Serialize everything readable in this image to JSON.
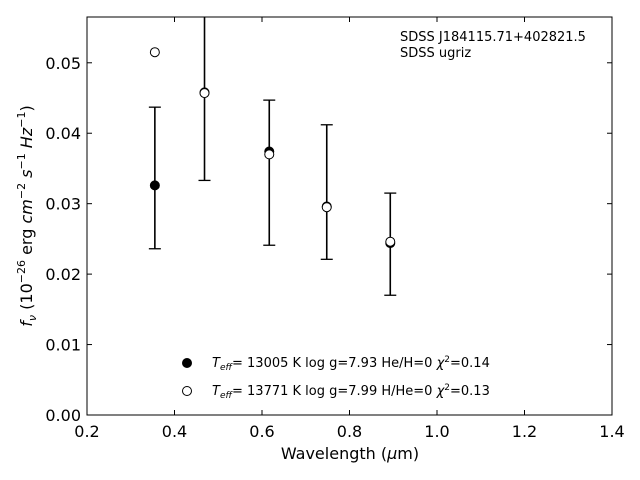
{
  "chart_data": {
    "type": "scatter",
    "xlabel": "Wavelength (μm)",
    "ylabel": "f_ν (10⁻²⁶ erg cm⁻² s⁻¹ Hz⁻¹)",
    "xlim": [
      0.2,
      1.4
    ],
    "ylim": [
      0.0,
      0.0565
    ],
    "xticks": [
      0.2,
      0.4,
      0.6,
      0.8,
      1.0,
      1.2,
      1.4
    ],
    "xtick_labels": [
      "0.2",
      "0.4",
      "0.6",
      "0.8",
      "1.0",
      "1.2",
      "1.4"
    ],
    "yticks": [
      0.0,
      0.01,
      0.02,
      0.03,
      0.04,
      0.05
    ],
    "ytick_labels": [
      "0.00",
      "0.01",
      "0.02",
      "0.03",
      "0.04",
      "0.05"
    ],
    "grid": false,
    "annotations": [
      "SDSS J184115.71+402821.5",
      "SDSS ugriz"
    ],
    "observed": {
      "x": [
        0.3551,
        0.4686,
        0.6166,
        0.748,
        0.8932
      ],
      "y": [
        0.0327,
        0.0459,
        0.0373,
        0.0297,
        0.0244
      ],
      "yerr_low": [
        0.0236,
        0.0333,
        0.0241,
        0.0221,
        0.017
      ],
      "yerr_high": [
        0.0437,
        0.0585,
        0.0447,
        0.0412,
        0.0315
      ]
    },
    "series": [
      {
        "name": "Teff= 13005 K  log g=7.93  He/H=0  χ²=0.14",
        "marker": "filled-circle",
        "x": [
          0.3551,
          0.4686,
          0.6166,
          0.748,
          0.8932
        ],
        "y": [
          0.0326,
          0.0458,
          0.0374,
          0.0296,
          0.0244
        ]
      },
      {
        "name": "Teff= 13771 K  log g=7.99  H/He=0  χ²=0.13",
        "marker": "open-circle",
        "x": [
          0.3551,
          0.4686,
          0.6166,
          0.748,
          0.8932
        ],
        "y": [
          0.0515,
          0.0457,
          0.037,
          0.0295,
          0.0246
        ]
      }
    ],
    "legend": {
      "placement": "lower-center",
      "entries": [
        {
          "t": "T",
          "sub": "eff",
          "mid": "= 13005 K  log g=7.93  He/H=0  ",
          "chi": "χ",
          "sup": "2",
          "tail": "=0.14"
        },
        {
          "t": "T",
          "sub": "eff",
          "mid": "= 13771 K  log g=7.99  H/He=0  ",
          "chi": "χ",
          "sup": "2",
          "tail": "=0.13"
        }
      ]
    },
    "xlabel_parts": {
      "pre": "Wavelength (",
      "mu": "μ",
      "post": "m)"
    },
    "ylabel_parts": {
      "f": "f",
      "nu": "ν",
      "a": " (10",
      "e1": "−26",
      "b": " erg ",
      "cm": "cm",
      "e2": "−2",
      "s": " s",
      "e3": "−1",
      "hz": " Hz",
      "e4": "−1",
      "c": ")"
    },
    "colors": {
      "marker": "#000000",
      "axis": "#000000"
    }
  }
}
